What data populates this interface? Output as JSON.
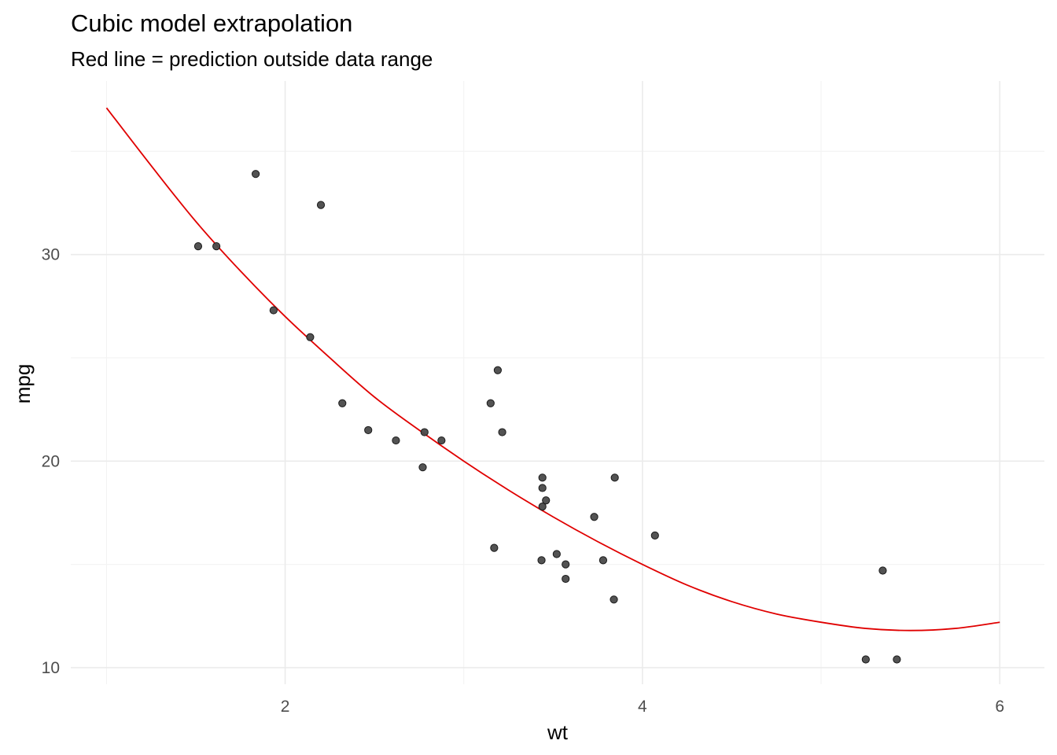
{
  "chart_data": {
    "type": "scatter",
    "title": "Cubic model extrapolation",
    "subtitle": "Red line = prediction outside data range",
    "xlabel": "wt",
    "ylabel": "mpg",
    "xlim": [
      0.8,
      6.25
    ],
    "ylim": [
      9.2,
      38.4
    ],
    "x_ticks": [
      2,
      4,
      6
    ],
    "y_ticks": [
      10,
      20,
      30
    ],
    "x_minor_ticks": [
      1,
      3,
      5
    ],
    "y_minor_ticks": [
      15,
      25,
      35
    ],
    "grid": true,
    "colors": {
      "points": "#333333",
      "line": "#e00000",
      "grid": "#ebebeb"
    },
    "points": [
      {
        "x": 1.513,
        "y": 30.4
      },
      {
        "x": 1.615,
        "y": 30.4
      },
      {
        "x": 1.835,
        "y": 33.9
      },
      {
        "x": 1.935,
        "y": 27.3
      },
      {
        "x": 2.14,
        "y": 26.0
      },
      {
        "x": 2.2,
        "y": 32.4
      },
      {
        "x": 2.32,
        "y": 22.8
      },
      {
        "x": 2.465,
        "y": 21.5
      },
      {
        "x": 2.62,
        "y": 21.0
      },
      {
        "x": 2.77,
        "y": 19.7
      },
      {
        "x": 2.78,
        "y": 21.4
      },
      {
        "x": 2.875,
        "y": 21.0
      },
      {
        "x": 3.15,
        "y": 22.8
      },
      {
        "x": 3.17,
        "y": 15.8
      },
      {
        "x": 3.19,
        "y": 24.4
      },
      {
        "x": 3.215,
        "y": 21.4
      },
      {
        "x": 3.435,
        "y": 15.2
      },
      {
        "x": 3.44,
        "y": 18.7
      },
      {
        "x": 3.44,
        "y": 19.2
      },
      {
        "x": 3.44,
        "y": 17.8
      },
      {
        "x": 3.46,
        "y": 18.1
      },
      {
        "x": 3.52,
        "y": 15.5
      },
      {
        "x": 3.57,
        "y": 15.0
      },
      {
        "x": 3.57,
        "y": 14.3
      },
      {
        "x": 3.73,
        "y": 17.3
      },
      {
        "x": 3.78,
        "y": 15.2
      },
      {
        "x": 3.84,
        "y": 13.3
      },
      {
        "x": 3.845,
        "y": 19.2
      },
      {
        "x": 4.07,
        "y": 16.4
      },
      {
        "x": 5.25,
        "y": 10.4
      },
      {
        "x": 5.345,
        "y": 14.7
      },
      {
        "x": 5.424,
        "y": 10.4
      }
    ],
    "series": [
      {
        "type": "line",
        "x": [
          1.0,
          1.25,
          1.5,
          1.75,
          2.0,
          2.25,
          2.5,
          2.75,
          3.0,
          3.25,
          3.5,
          3.75,
          4.0,
          4.25,
          4.5,
          4.75,
          5.0,
          5.25,
          5.5,
          5.75,
          6.0
        ],
        "y": [
          37.1,
          34.3,
          31.6,
          29.2,
          27.0,
          25.0,
          23.1,
          21.5,
          20.0,
          18.6,
          17.3,
          16.1,
          15.0,
          14.0,
          13.2,
          12.6,
          12.2,
          11.9,
          11.8,
          11.9,
          12.2
        ]
      }
    ]
  }
}
